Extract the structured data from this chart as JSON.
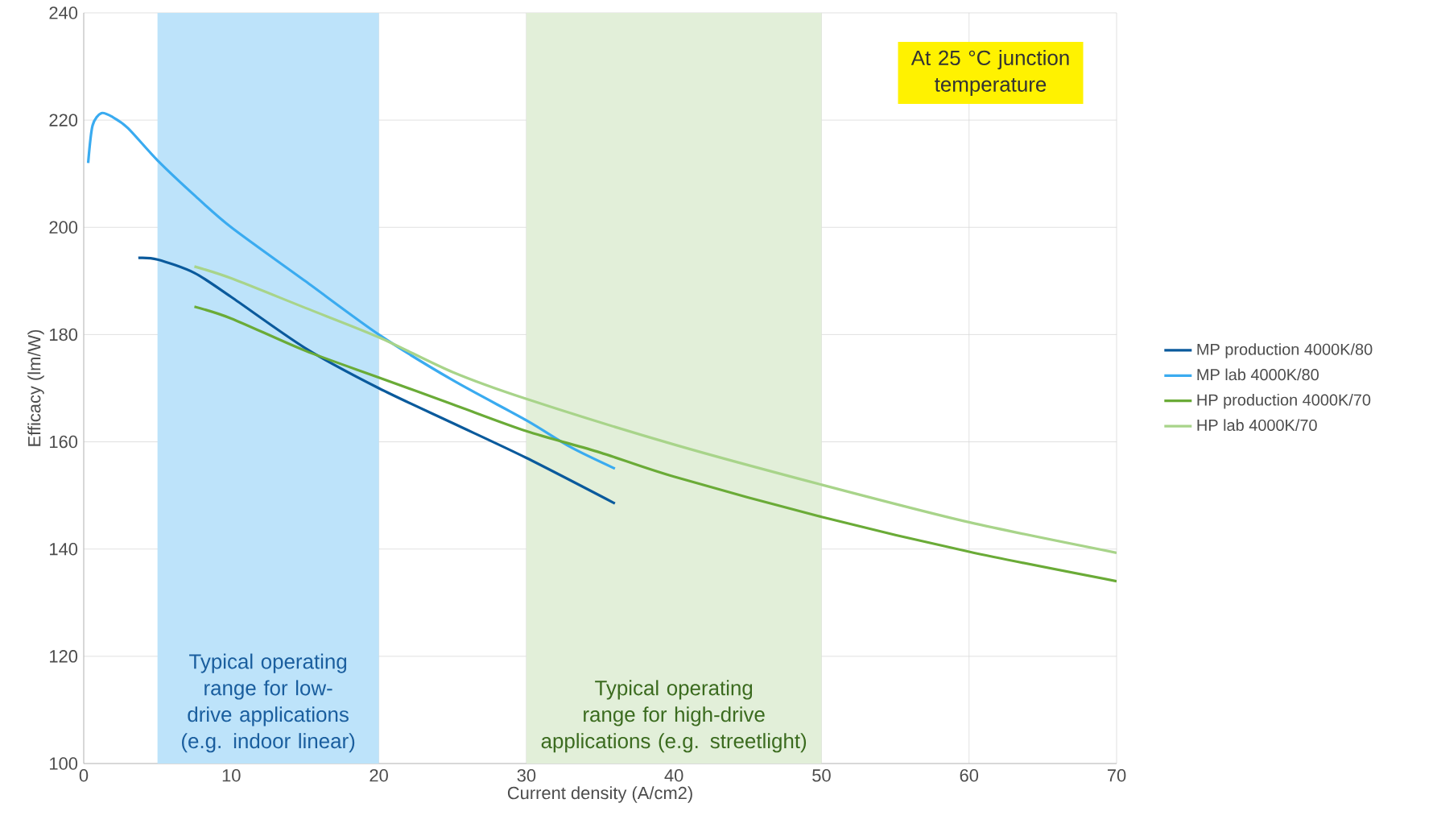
{
  "chart_data": {
    "type": "line",
    "xlabel": "Current density (A/cm2)",
    "ylabel": "Efficacy (lm/W)",
    "xlim": [
      0,
      70
    ],
    "ylim": [
      100,
      240
    ],
    "xticks": [
      0,
      10,
      20,
      30,
      40,
      50,
      60,
      70
    ],
    "yticks": [
      100,
      120,
      140,
      160,
      180,
      200,
      220,
      240
    ],
    "grid": true,
    "legend": "right",
    "marker": "none",
    "line_style": "solid",
    "series": [
      {
        "name": "MP production 4000K/80",
        "color": "#0a5a9c",
        "x": [
          3.7,
          5,
          7.5,
          10,
          15,
          20,
          25,
          30,
          36
        ],
        "values": [
          194.3,
          194,
          191.5,
          187,
          177.5,
          170,
          163.5,
          157,
          148.5
        ]
      },
      {
        "name": "MP lab 4000K/80",
        "color": "#3aabf0",
        "x": [
          0.3,
          0.6,
          1.2,
          2,
          3,
          5,
          7.5,
          10,
          15,
          20,
          25,
          30,
          33,
          36
        ],
        "values": [
          212,
          219,
          221.3,
          220.5,
          218.5,
          212.5,
          206,
          200,
          190,
          180,
          171.5,
          164,
          159,
          155
        ]
      },
      {
        "name": "HP production 4000K/70",
        "color": "#6aab37",
        "x": [
          7.5,
          10,
          15,
          20,
          25,
          30,
          35,
          40,
          50,
          60,
          70
        ],
        "values": [
          185.2,
          183,
          177,
          172,
          167,
          162,
          158,
          153.5,
          146,
          139.5,
          134
        ]
      },
      {
        "name": "HP lab 4000K/70",
        "color": "#a8d48a",
        "x": [
          7.5,
          10,
          15,
          20,
          25,
          30,
          40,
          50,
          60,
          70
        ],
        "values": [
          192.7,
          190.5,
          185,
          179.5,
          173,
          168,
          159.5,
          152,
          145,
          139.3
        ]
      }
    ],
    "bands": [
      {
        "axis": "x",
        "from": 5,
        "to": 20,
        "label": "Typical operating range for low-drive applications (e.g. indoor linear)",
        "color": "#bde3fa"
      },
      {
        "axis": "x",
        "from": 30,
        "to": 50,
        "label": "Typical operating range for high-drive applications (e.g. streetlight)",
        "color": "#e2efd9"
      }
    ],
    "annotations": [
      "At 25 °C junction temperature"
    ]
  }
}
